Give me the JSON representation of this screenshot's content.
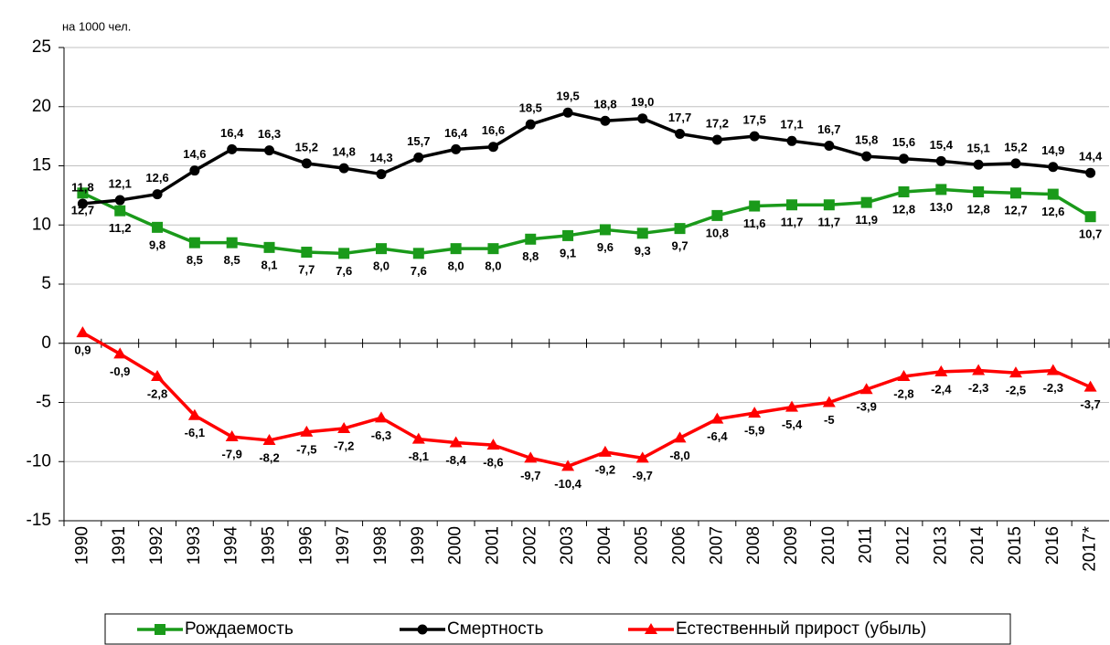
{
  "chart_data": {
    "type": "line",
    "unit_label": "на 1000 чел.",
    "categories": [
      "1990",
      "1991",
      "1992",
      "1993",
      "1994",
      "1995",
      "1996",
      "1997",
      "1998",
      "1999",
      "2000",
      "2001",
      "2002",
      "2003",
      "2004",
      "2005",
      "2006",
      "2007",
      "2008",
      "2009",
      "2010",
      "2011",
      "2012",
      "2013",
      "2014",
      "2015",
      "2016",
      "2017*"
    ],
    "series": [
      {
        "name": "Рождаемость",
        "color": "#1a9a1a",
        "marker": "square",
        "values": [
          12.7,
          11.2,
          9.8,
          8.5,
          8.5,
          8.1,
          7.7,
          7.6,
          8.0,
          7.6,
          8.0,
          8.0,
          8.8,
          9.1,
          9.6,
          9.3,
          9.7,
          10.8,
          11.6,
          11.7,
          11.7,
          11.9,
          12.8,
          13.0,
          12.8,
          12.7,
          12.6,
          10.7
        ],
        "value_labels": [
          "12,7",
          "11,2",
          "9,8",
          "8,5",
          "8,5",
          "8,1",
          "7,7",
          "7,6",
          "8,0",
          "7,6",
          "8,0",
          "8,0",
          "8,8",
          "9,1",
          "9,6",
          "9,3",
          "9,7",
          "10,8",
          "11,6",
          "11,7",
          "11,7",
          "11,9",
          "12,8",
          "13,0",
          "12,8",
          "12,7",
          "12,6",
          "10,7"
        ]
      },
      {
        "name": "Смертность",
        "color": "#000000",
        "marker": "circle",
        "values": [
          11.8,
          12.1,
          12.6,
          14.6,
          16.4,
          16.3,
          15.2,
          14.8,
          14.3,
          15.7,
          16.4,
          16.6,
          18.5,
          19.5,
          18.8,
          19.0,
          17.7,
          17.2,
          17.5,
          17.1,
          16.7,
          15.8,
          15.6,
          15.4,
          15.1,
          15.2,
          14.9,
          14.4
        ],
        "value_labels": [
          "11,8",
          "12,1",
          "12,6",
          "14,6",
          "16,4",
          "16,3",
          "15,2",
          "14,8",
          "14,3",
          "15,7",
          "16,4",
          "16,6",
          "18,5",
          "19,5",
          "18,8",
          "19,0",
          "17,7",
          "17,2",
          "17,5",
          "17,1",
          "16,7",
          "15,8",
          "15,6",
          "15,4",
          "15,1",
          "15,2",
          "14,9",
          "14,4"
        ]
      },
      {
        "name": "Естественный прирост (убыль)",
        "color": "#ff0000",
        "marker": "triangle",
        "values": [
          0.9,
          -0.9,
          -2.8,
          -6.1,
          -7.9,
          -8.2,
          -7.5,
          -7.2,
          -6.3,
          -8.1,
          -8.4,
          -8.6,
          -9.7,
          -10.4,
          -9.2,
          -9.7,
          -8.0,
          -6.4,
          -5.9,
          -5.4,
          -5,
          -3.9,
          -2.8,
          -2.4,
          -2.3,
          -2.5,
          -2.3,
          -3.7
        ],
        "value_labels": [
          "0,9",
          "-0,9",
          "-2,8",
          "-6,1",
          "-7,9",
          "-8,2",
          "-7,5",
          "-7,2",
          "-6,3",
          "-8,1",
          "-8,4",
          "-8,6",
          "-9,7",
          "-10,4",
          "-9,2",
          "-9,7",
          "-8,0",
          "-6,4",
          "-5,9",
          "-5,4",
          "-5",
          "-3,9",
          "-2,8",
          "-2,4",
          "-2,3",
          "-2,5",
          "-2,3",
          "-3,7"
        ]
      }
    ],
    "ylim": [
      -15,
      25
    ],
    "yticks": [
      -15,
      -10,
      -5,
      0,
      5,
      10,
      15,
      20,
      25
    ],
    "grid": true,
    "legend": "bottom"
  }
}
